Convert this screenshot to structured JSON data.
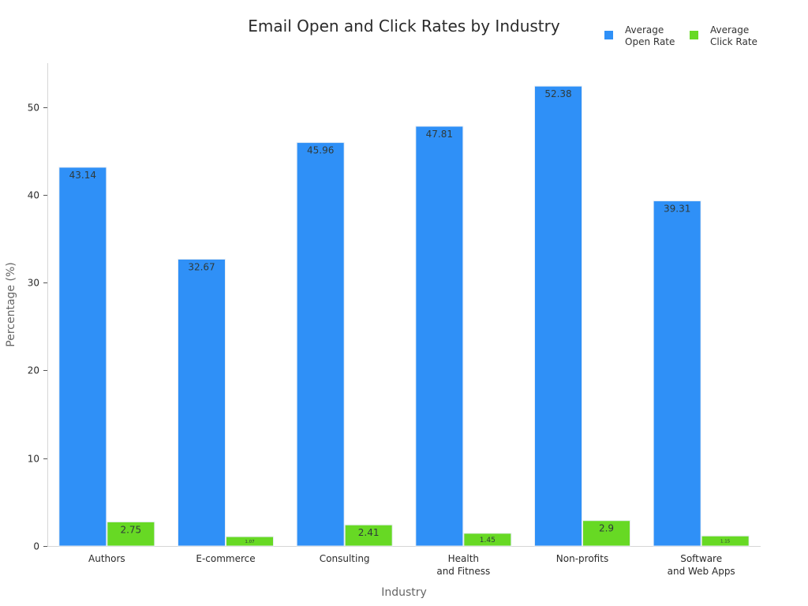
{
  "chart_data": {
    "type": "bar",
    "title": "Email Open and Click Rates by Industry",
    "xlabel": "Industry",
    "ylabel": "Percentage (%)",
    "ylim": [
      0,
      55
    ],
    "y_ticks": [
      0,
      10,
      20,
      30,
      40,
      50
    ],
    "grid": false,
    "legend_position": "top-right",
    "categories": [
      [
        "Authors"
      ],
      [
        "E-commerce"
      ],
      [
        "Consulting"
      ],
      [
        "Health",
        "and Fitness"
      ],
      [
        "Non-profits"
      ],
      [
        "Software",
        "and Web Apps"
      ]
    ],
    "series": [
      {
        "name": [
          "Average",
          "Open Rate"
        ],
        "color": "#2f90f7",
        "values": [
          43.14,
          32.67,
          45.96,
          47.81,
          52.38,
          39.31
        ],
        "labels": [
          "43.14",
          "32.67",
          "45.96",
          "47.81",
          "52.38",
          "39.31"
        ]
      },
      {
        "name": [
          "Average",
          "Click Rate"
        ],
        "color": "#67d924",
        "values": [
          2.75,
          1.07,
          2.41,
          1.45,
          2.9,
          1.15
        ],
        "labels": [
          "2.75",
          "1.07",
          "2.41",
          "1.45",
          "2.9",
          "1.15"
        ]
      }
    ]
  }
}
